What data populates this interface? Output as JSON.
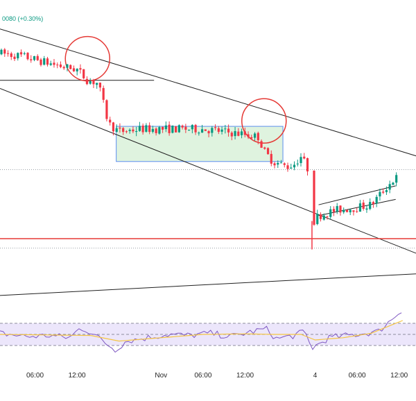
{
  "chart_data": {
    "type": "candlestick",
    "title": "",
    "legend": {
      "change_text": "0080 (+0.30%)"
    },
    "time_axis": {
      "ticks": [
        {
          "label": "06:00",
          "t": 4
        },
        {
          "label": "12:00",
          "t": 10
        },
        {
          "label": "Nov",
          "t": 22
        },
        {
          "label": "06:00",
          "t": 28
        },
        {
          "label": "12:00",
          "t": 34
        },
        {
          "label": "4",
          "t": 44
        },
        {
          "label": "06:00",
          "t": 50
        },
        {
          "label": "12:00",
          "t": 56
        }
      ]
    },
    "price_range": [
      0,
      100
    ],
    "candle_anchors": [
      [
        -1,
        88
      ],
      [
        2,
        87
      ],
      [
        5,
        85
      ],
      [
        8,
        83
      ],
      [
        10,
        82
      ],
      [
        11.5,
        78
      ],
      [
        13,
        77
      ],
      [
        14,
        67
      ],
      [
        14.5,
        62
      ],
      [
        16,
        59
      ],
      [
        19,
        60
      ],
      [
        22,
        60
      ],
      [
        25,
        60
      ],
      [
        28,
        60
      ],
      [
        31,
        59
      ],
      [
        34,
        58
      ],
      [
        36,
        57
      ],
      [
        36.6,
        52
      ],
      [
        38,
        48
      ],
      [
        40,
        46
      ],
      [
        41,
        47
      ],
      [
        42,
        50
      ],
      [
        43,
        45
      ],
      [
        43.5,
        25
      ],
      [
        44.5,
        28
      ],
      [
        47,
        30
      ],
      [
        50,
        31
      ],
      [
        52,
        32
      ],
      [
        53,
        35
      ],
      [
        54,
        38
      ],
      [
        55.5,
        42
      ]
    ],
    "session_gap": [
      43,
      43.5
    ],
    "drawings": {
      "channel_lines": [
        {
          "from": [
            -1,
            97
          ],
          "to": [
            58.5,
            50
          ]
        },
        {
          "from": [
            -1,
            75
          ],
          "to": [
            58.5,
            14
          ]
        }
      ],
      "resistance_line": {
        "from": [
          -1,
          78
        ],
        "to": [
          21,
          78
        ]
      },
      "support_line": {
        "level": 19.5,
        "color": "#e53935"
      },
      "dotted_levels": [
        45,
        16
      ],
      "rectangle": {
        "t": [
          15.6,
          39.4
        ],
        "price": [
          61,
          48
        ],
        "fill": "#dff3df",
        "stroke": "#5b8def"
      },
      "circles": [
        {
          "t": 11.5,
          "price": 86,
          "color": "#e53935"
        },
        {
          "t": 36.7,
          "price": 63,
          "color": "#e53935"
        }
      ],
      "wedge": {
        "upper": [
          [
            44.5,
            32
          ],
          [
            55.5,
            39
          ]
        ],
        "lower": [
          [
            44.5,
            28
          ],
          [
            55.5,
            34
          ]
        ]
      }
    },
    "oscillator": {
      "name": "RSI",
      "bands": [
        70,
        30
      ],
      "range": [
        0,
        100
      ],
      "band_fill": "#ece6fb",
      "line_color": "#7e57c2",
      "ma_color": "#f5c542",
      "anchors": [
        [
          -1,
          52
        ],
        [
          3,
          46
        ],
        [
          6,
          48
        ],
        [
          9,
          44
        ],
        [
          10.5,
          62
        ],
        [
          12,
          54
        ],
        [
          14,
          35
        ],
        [
          15.5,
          22
        ],
        [
          17,
          38
        ],
        [
          20,
          44
        ],
        [
          23,
          50
        ],
        [
          26,
          48
        ],
        [
          29,
          52
        ],
        [
          32,
          46
        ],
        [
          35,
          55
        ],
        [
          37,
          60
        ],
        [
          38.5,
          42
        ],
        [
          41,
          48
        ],
        [
          42.5,
          55
        ],
        [
          43.5,
          25
        ],
        [
          46,
          44
        ],
        [
          50,
          50
        ],
        [
          53,
          55
        ],
        [
          55,
          78
        ],
        [
          56.5,
          96
        ]
      ],
      "ma_anchors": [
        [
          -1,
          50
        ],
        [
          6,
          49
        ],
        [
          12,
          48
        ],
        [
          16,
          38
        ],
        [
          22,
          44
        ],
        [
          28,
          50
        ],
        [
          34,
          51
        ],
        [
          38,
          50
        ],
        [
          42,
          50
        ],
        [
          44,
          40
        ],
        [
          48,
          44
        ],
        [
          52,
          52
        ],
        [
          56.5,
          75
        ]
      ]
    },
    "grid": false,
    "colors": {
      "up": "#089981",
      "down": "#f23645"
    }
  }
}
